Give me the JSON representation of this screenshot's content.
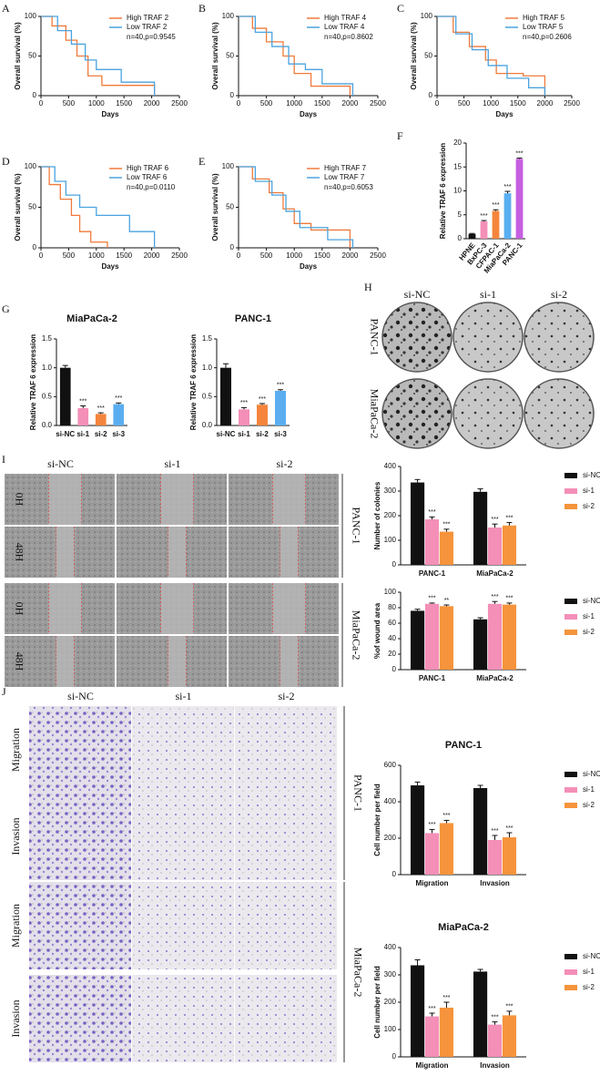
{
  "panel_letters": [
    "A",
    "B",
    "C",
    "D",
    "E",
    "F",
    "G",
    "H",
    "I",
    "J"
  ],
  "chart_data": [
    {
      "type": "line",
      "annotation": "n=40,p=0.9545",
      "xlabel": "Days",
      "ylabel": "Overall survival (%)",
      "xlim": [
        0,
        2500
      ],
      "xticks": [
        0,
        500,
        1000,
        1500,
        2000,
        2500
      ],
      "ylim": [
        0,
        100
      ],
      "yticks": [
        0,
        50,
        100
      ],
      "series": [
        {
          "name": "High TRAF 2",
          "color": "#f07a3a",
          "x": [
            0,
            200,
            200,
            450,
            450,
            650,
            650,
            850,
            850,
            1100,
            1100,
            2050,
            2050
          ],
          "values": [
            100,
            100,
            88,
            88,
            70,
            70,
            50,
            50,
            25,
            25,
            13,
            13,
            0
          ]
        },
        {
          "name": "Low TRAF 2",
          "color": "#4aa3df",
          "x": [
            0,
            300,
            300,
            550,
            550,
            800,
            800,
            1000,
            1000,
            1450,
            1450,
            2050,
            2050
          ],
          "values": [
            100,
            100,
            82,
            82,
            65,
            65,
            45,
            45,
            33,
            33,
            17,
            17,
            0
          ]
        }
      ]
    },
    {
      "type": "line",
      "annotation": "n=40,p=0.8602",
      "xlabel": "Days",
      "ylabel": "Overall survival (%)",
      "xlim": [
        0,
        2500
      ],
      "xticks": [
        0,
        500,
        1000,
        1500,
        2000,
        2500
      ],
      "ylim": [
        0,
        100
      ],
      "yticks": [
        0,
        50,
        100
      ],
      "series": [
        {
          "name": "High TRAF 4",
          "color": "#f07a3a",
          "x": [
            0,
            250,
            250,
            500,
            500,
            800,
            800,
            1000,
            1000,
            1300,
            1300,
            2000,
            2000
          ],
          "values": [
            100,
            100,
            85,
            85,
            68,
            68,
            50,
            50,
            28,
            28,
            12,
            12,
            0
          ]
        },
        {
          "name": "Low TRAF 4",
          "color": "#4aa3df",
          "x": [
            0,
            300,
            300,
            600,
            600,
            900,
            900,
            1200,
            1200,
            1500,
            1500,
            2050,
            2050
          ],
          "values": [
            100,
            100,
            80,
            80,
            62,
            62,
            40,
            40,
            33,
            33,
            15,
            15,
            0
          ]
        }
      ]
    },
    {
      "type": "line",
      "annotation": "n=40,p=0.2606",
      "xlabel": "Days",
      "ylabel": "Overall survival (%)",
      "xlim": [
        0,
        2500
      ],
      "xticks": [
        0,
        500,
        1000,
        1500,
        2000,
        2500
      ],
      "ylim": [
        0,
        100
      ],
      "yticks": [
        0,
        50,
        100
      ],
      "series": [
        {
          "name": "High TRAF 5",
          "color": "#f07a3a",
          "x": [
            0,
            300,
            300,
            600,
            600,
            900,
            900,
            1100,
            1100,
            1600,
            1600,
            2000,
            2000
          ],
          "values": [
            100,
            100,
            80,
            80,
            62,
            62,
            45,
            45,
            28,
            28,
            25,
            25,
            0
          ]
        },
        {
          "name": "Low TRAF 5",
          "color": "#4aa3df",
          "x": [
            0,
            350,
            350,
            650,
            650,
            950,
            950,
            1300,
            1300,
            1700,
            1700,
            2000,
            2000
          ],
          "values": [
            100,
            100,
            78,
            78,
            58,
            58,
            38,
            38,
            22,
            22,
            10,
            10,
            0
          ]
        }
      ]
    },
    {
      "type": "line",
      "annotation": "n=40,p=0.0110",
      "xlabel": "Days",
      "ylabel": "Overall survival (%)",
      "xlim": [
        0,
        2500
      ],
      "xticks": [
        0,
        500,
        1000,
        1500,
        2000,
        2500
      ],
      "ylim": [
        0,
        100
      ],
      "yticks": [
        0,
        50,
        100
      ],
      "series": [
        {
          "name": "High TRAF 6",
          "color": "#f07a3a",
          "x": [
            0,
            150,
            150,
            350,
            350,
            550,
            550,
            700,
            700,
            900,
            900,
            1200,
            1200
          ],
          "values": [
            100,
            100,
            78,
            78,
            60,
            60,
            40,
            40,
            20,
            20,
            7,
            7,
            0
          ]
        },
        {
          "name": "Low TRAF 6",
          "color": "#4aa3df",
          "x": [
            0,
            250,
            250,
            450,
            450,
            700,
            700,
            1000,
            1000,
            1600,
            1600,
            2050,
            2050
          ],
          "values": [
            100,
            100,
            82,
            82,
            65,
            65,
            50,
            50,
            40,
            40,
            20,
            20,
            0
          ]
        }
      ]
    },
    {
      "type": "line",
      "annotation": "n=40,p=0.6053",
      "xlabel": "Days",
      "ylabel": "Overall survival (%)",
      "xlim": [
        0,
        2500
      ],
      "xticks": [
        0,
        500,
        1000,
        1500,
        2000,
        2500
      ],
      "ylim": [
        0,
        100
      ],
      "yticks": [
        0,
        50,
        100
      ],
      "series": [
        {
          "name": "High TRAF 7",
          "color": "#f07a3a",
          "x": [
            0,
            250,
            250,
            550,
            550,
            800,
            800,
            1000,
            1000,
            1300,
            1300,
            2000,
            2000
          ],
          "values": [
            100,
            100,
            85,
            85,
            68,
            68,
            48,
            48,
            30,
            30,
            22,
            22,
            0
          ]
        },
        {
          "name": "Low TRAF 7",
          "color": "#4aa3df",
          "x": [
            0,
            300,
            300,
            600,
            600,
            850,
            850,
            1100,
            1100,
            1600,
            1600,
            2050,
            2050
          ],
          "values": [
            100,
            100,
            82,
            82,
            65,
            65,
            45,
            45,
            25,
            25,
            10,
            10,
            0
          ]
        }
      ]
    },
    {
      "type": "bar",
      "ylabel": "Relative TRAF 6 expression",
      "rotate_labels": true,
      "categories": [
        "HPNE",
        "BxPC-3",
        "CFPAC-1",
        "MiaPaCa-2",
        "PANC-1"
      ],
      "values": [
        1,
        3.6,
        5.8,
        9.5,
        16.7
      ],
      "errors": [
        0.1,
        0.2,
        0.25,
        0.4,
        0.15
      ],
      "colors": [
        "#111111",
        "#f48fb8",
        "#f5853c",
        "#5aaef0",
        "#c65fe0"
      ],
      "significance": [
        null,
        "***",
        "***",
        "***",
        "***"
      ],
      "ylim": [
        0,
        20
      ],
      "yticks": [
        0,
        5,
        10,
        15,
        20
      ]
    },
    {
      "type": "bar",
      "title": "MiaPaCa-2",
      "ylabel": "Relative TRAF 6 expression",
      "categories": [
        "si-NC",
        "si-1",
        "si-2",
        "si-3"
      ],
      "values": [
        1,
        0.3,
        0.2,
        0.37
      ],
      "errors": [
        0.04,
        0.04,
        0.02,
        0.02
      ],
      "colors": [
        "#111111",
        "#f48fb8",
        "#f5853c",
        "#5aaef0"
      ],
      "significance": [
        null,
        "***",
        "***",
        "***"
      ],
      "ylim": [
        0,
        1.5
      ],
      "yticks": [
        {
          "value": 0,
          "label": "0.0"
        },
        0.5,
        {
          "value": 1,
          "label": "1.0"
        },
        1.5
      ]
    },
    {
      "type": "bar",
      "title": "PANC-1",
      "ylabel": "Relative TRAF 6 expression",
      "categories": [
        "si-NC",
        "si-1",
        "si-2",
        "si-3"
      ],
      "values": [
        1,
        0.28,
        0.36,
        0.6
      ],
      "errors": [
        0.07,
        0.03,
        0.02,
        0.02
      ],
      "colors": [
        "#111111",
        "#f48fb8",
        "#f5853c",
        "#5aaef0"
      ],
      "significance": [
        null,
        "***",
        "***",
        "***"
      ],
      "ylim": [
        0,
        1.5
      ],
      "yticks": [
        {
          "value": 0,
          "label": "0.0"
        },
        0.5,
        {
          "value": 1,
          "label": "1.0"
        },
        1.5
      ]
    },
    {
      "type": "grouped_bar",
      "ylabel": "Number of colonies",
      "categories": [
        "PANC-1",
        "MiaPaCa-2"
      ],
      "ylim": [
        0,
        400
      ],
      "yticks": [
        0,
        100,
        200,
        300,
        400
      ],
      "series": [
        {
          "name": "si-NC",
          "color": "#111111",
          "values": [
            335,
            297
          ],
          "errors": [
            12,
            12
          ],
          "significance": [
            null,
            null
          ]
        },
        {
          "name": "si-1",
          "color": "#f48fb8",
          "values": [
            185,
            152
          ],
          "errors": [
            10,
            14
          ],
          "significance": [
            "***",
            "***"
          ]
        },
        {
          "name": "si-2",
          "color": "#f5943c",
          "values": [
            135,
            160
          ],
          "errors": [
            10,
            12
          ],
          "significance": [
            "***",
            "***"
          ]
        }
      ]
    },
    {
      "type": "grouped_bar",
      "ylabel": "%of wound area",
      "categories": [
        "PANC-1",
        "MiaPaCa-2"
      ],
      "ylim": [
        0,
        100
      ],
      "yticks": [
        0,
        20,
        40,
        60,
        80,
        100
      ],
      "series": [
        {
          "name": "si-NC",
          "color": "#111111",
          "values": [
            76,
            65
          ],
          "errors": [
            2,
            2
          ],
          "significance": [
            null,
            null
          ]
        },
        {
          "name": "si-1",
          "color": "#f48fb8",
          "values": [
            85,
            85
          ],
          "errors": [
            1,
            3
          ],
          "significance": [
            "***",
            "***"
          ]
        },
        {
          "name": "si-2",
          "color": "#f5943c",
          "values": [
            82,
            84
          ],
          "errors": [
            1.5,
            2
          ],
          "significance": [
            "**",
            "***"
          ]
        }
      ]
    },
    {
      "type": "grouped_bar",
      "title": "PANC-1",
      "ylabel": "Cell number per field",
      "categories": [
        "Migration",
        "Invasion"
      ],
      "ylim": [
        0,
        600
      ],
      "yticks": [
        0,
        200,
        400,
        600
      ],
      "series": [
        {
          "name": "si-NC",
          "color": "#111111",
          "values": [
            490,
            475
          ],
          "errors": [
            18,
            15
          ],
          "significance": [
            null,
            null
          ]
        },
        {
          "name": "si-1",
          "color": "#f48fb8",
          "values": [
            228,
            190
          ],
          "errors": [
            20,
            25
          ],
          "significance": [
            "***",
            "***"
          ]
        },
        {
          "name": "si-2",
          "color": "#f5943c",
          "values": [
            283,
            205
          ],
          "errors": [
            15,
            25
          ],
          "significance": [
            "***",
            "***"
          ]
        }
      ]
    },
    {
      "type": "grouped_bar",
      "title": "MiaPaCa-2",
      "ylabel": "Cell number per field",
      "categories": [
        "Migration",
        "Invasion"
      ],
      "ylim": [
        0,
        400
      ],
      "yticks": [
        0,
        100,
        200,
        300,
        400
      ],
      "series": [
        {
          "name": "si-NC",
          "color": "#111111",
          "values": [
            335,
            312
          ],
          "errors": [
            20,
            8
          ],
          "significance": [
            null,
            null
          ]
        },
        {
          "name": "si-1",
          "color": "#f48fb8",
          "values": [
            148,
            118
          ],
          "errors": [
            12,
            10
          ],
          "significance": [
            "***",
            "***"
          ]
        },
        {
          "name": "si-2",
          "color": "#f5943c",
          "values": [
            180,
            152
          ],
          "errors": [
            20,
            15
          ],
          "significance": [
            "***",
            "***"
          ]
        }
      ]
    }
  ],
  "images": {
    "colony": {
      "columns": [
        "si-NC",
        "si-1",
        "si-2"
      ],
      "rows": [
        "PANC-1",
        "MiaPaCa-2"
      ]
    },
    "wound": {
      "columns": [
        "si-NC",
        "si-1",
        "si-2"
      ],
      "rows": [
        "0H",
        "48H",
        "0H",
        "48H"
      ],
      "groups": [
        "PANC-1",
        "MiaPaCa-2"
      ]
    },
    "transwell": {
      "columns": [
        "si-NC",
        "si-1",
        "si-2"
      ],
      "rows": [
        "Migration",
        "Invasion",
        "Migration",
        "Invasion"
      ],
      "groups": [
        "PANC-1",
        "MiaPaCa-2"
      ]
    }
  }
}
